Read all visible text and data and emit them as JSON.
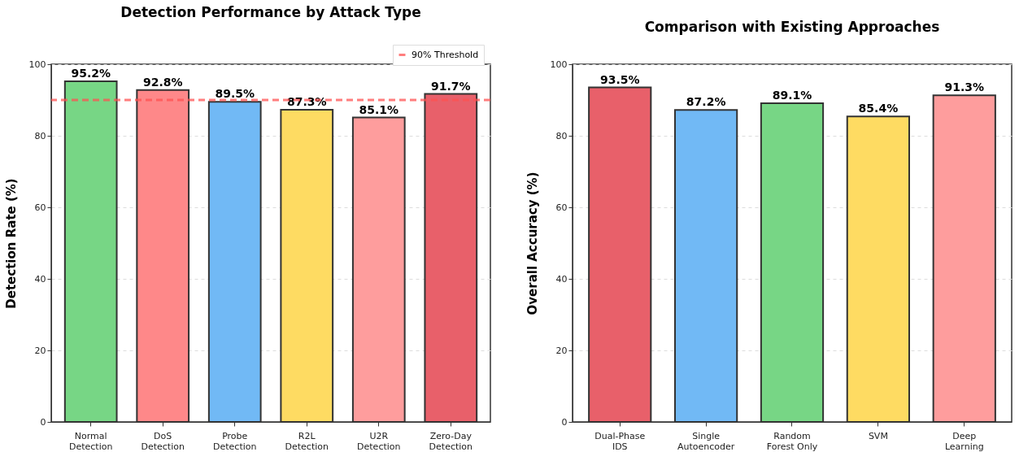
{
  "chart_data": [
    {
      "type": "bar",
      "title": "Detection Performance by Attack Type",
      "ylabel": "Detection Rate (%)",
      "categories": [
        "Normal\nDetection",
        "DoS\nDetection",
        "Probe\nDetection",
        "R2L\nDetection",
        "U2R\nDetection",
        "Zero-Day\nDetection"
      ],
      "values": [
        95.2,
        92.8,
        89.5,
        87.3,
        85.1,
        91.7
      ],
      "colors": [
        "#77d685",
        "#fe8889",
        "#71b9f5",
        "#fedb62",
        "#fe9d9d",
        "#e8606a"
      ],
      "value_labels": [
        "95.2%",
        "92.8%",
        "89.5%",
        "87.3%",
        "85.1%",
        "91.7%"
      ],
      "ylim": [
        0,
        100
      ],
      "yticks": [
        0,
        20,
        40,
        60,
        80,
        100
      ],
      "grid": "y",
      "ref_lines": [
        {
          "axis": "y",
          "value": 90,
          "label": "90% Threshold",
          "color": "#ff5252",
          "line_style": "dashed"
        }
      ],
      "legend": "top right"
    },
    {
      "type": "bar",
      "title": "Comparison with Existing Approaches",
      "ylabel": "Overall Accuracy (%)",
      "categories": [
        "Dual-Phase\nIDS",
        "Single\nAutoencoder",
        "Random\nForest Only",
        "SVM",
        "Deep\nLearning"
      ],
      "values": [
        93.5,
        87.2,
        89.1,
        85.4,
        91.3
      ],
      "colors": [
        "#e8606a",
        "#71b9f5",
        "#77d685",
        "#fedb62",
        "#fe9d9d"
      ],
      "value_labels": [
        "93.5%",
        "87.2%",
        "89.1%",
        "85.4%",
        "91.3%"
      ],
      "ylim": [
        0,
        100
      ],
      "yticks": [
        0,
        20,
        40,
        60,
        80,
        100
      ],
      "grid": "y"
    }
  ]
}
